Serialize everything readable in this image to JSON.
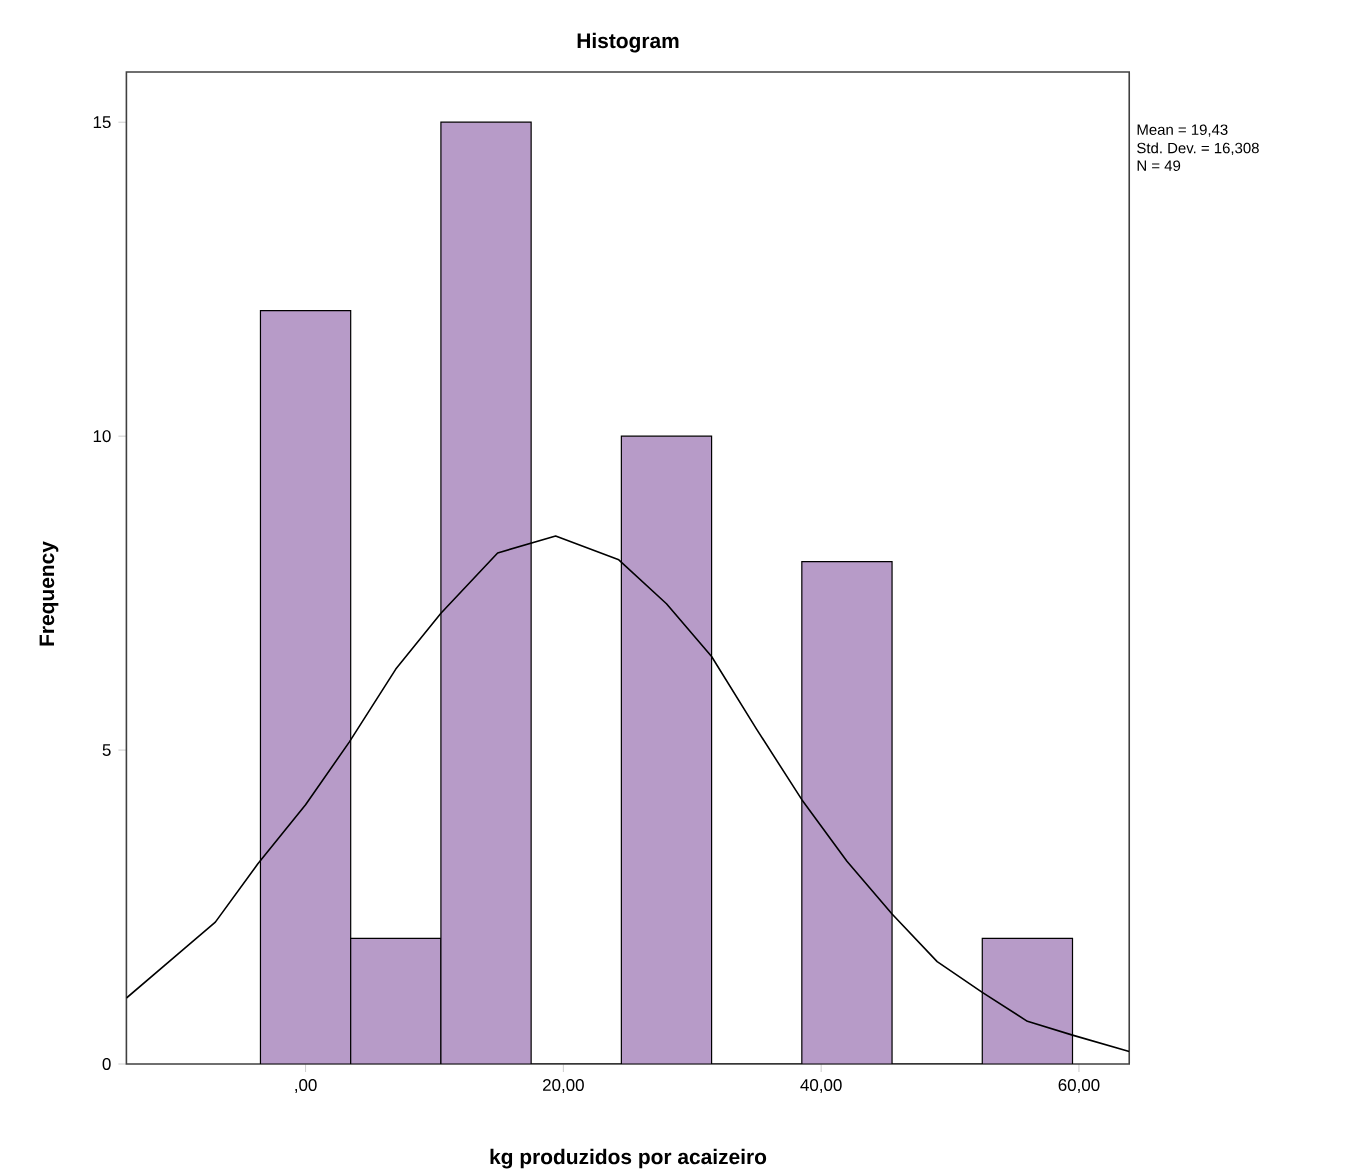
{
  "chart_data": {
    "type": "histogram",
    "title": "Histogram",
    "xlabel": "kg produzidos por acaizeiro",
    "ylabel": "Frequency",
    "bins": [
      -3.5,
      3.5,
      10.5,
      17.5,
      24.5,
      31.5,
      38.5,
      45.5,
      52.5,
      59.5
    ],
    "values": [
      12,
      2,
      15,
      0,
      10,
      0,
      8,
      0,
      2
    ],
    "color": "#b79bc8",
    "series": [
      {
        "type": "line",
        "color": "#000000",
        "x": [
          -13.9,
          -9.5,
          -7,
          -3.7,
          0,
          3.4,
          7,
          10.5,
          14.9,
          19.4,
          24.3,
          28,
          31.5,
          35,
          38.5,
          42,
          45.5,
          49,
          52.5,
          56,
          59.5,
          63.9
        ],
        "values": [
          1.05,
          1.82,
          2.26,
          3.19,
          4.13,
          5.13,
          6.29,
          7.18,
          8.14,
          8.41,
          8.03,
          7.33,
          6.49,
          5.33,
          4.21,
          3.23,
          2.39,
          1.63,
          1.14,
          0.68,
          0.46,
          0.2
        ]
      }
    ],
    "xlim": [
      -13.9,
      63.9
    ],
    "ylim": [
      0,
      15.8
    ],
    "xticks": [
      {
        "value": 0,
        "label": ",00"
      },
      {
        "value": 20,
        "label": "20,00"
      },
      {
        "value": 40,
        "label": "40,00"
      },
      {
        "value": 60,
        "label": "60,00"
      }
    ],
    "yticks": [
      0,
      5,
      10,
      15
    ],
    "annotations": [
      "Mean = 19,43",
      "Std. Dev. = 16,308",
      "N = 49"
    ]
  }
}
